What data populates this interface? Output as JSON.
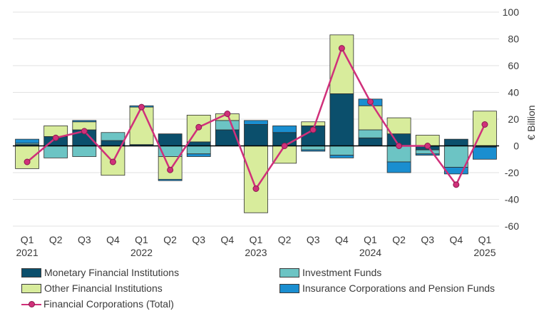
{
  "chart_data": {
    "type": "bar",
    "stacked": true,
    "categories": [
      "Q1",
      "Q2",
      "Q3",
      "Q4",
      "Q1",
      "Q2",
      "Q3",
      "Q4",
      "Q1",
      "Q2",
      "Q3",
      "Q4",
      "Q1",
      "Q2",
      "Q3",
      "Q4",
      "Q1"
    ],
    "years": [
      {
        "label": "2021",
        "index": 0
      },
      {
        "label": "2022",
        "index": 4
      },
      {
        "label": "2023",
        "index": 8
      },
      {
        "label": "2024",
        "index": 12
      },
      {
        "label": "2025",
        "index": 16
      }
    ],
    "ylabel": "€ Billion",
    "ylim": [
      -60,
      100
    ],
    "yticks": [
      100,
      80,
      60,
      40,
      20,
      0,
      -20,
      -40,
      -60
    ],
    "series": [
      {
        "name": "Monetary Financial Institutions",
        "color": "#0b4f6c",
        "values": [
          1,
          7,
          12,
          4,
          1,
          9,
          3,
          12,
          16,
          10,
          15,
          39,
          6,
          9,
          -3,
          5,
          -1
        ]
      },
      {
        "name": "Investment Funds",
        "color": "#6cc4c4",
        "values": [
          1,
          -9,
          -8,
          6,
          0,
          -8,
          -6,
          7,
          0,
          0,
          -3,
          -7,
          6,
          -12,
          -3,
          -16,
          0
        ]
      },
      {
        "name": "Other Financial Institutions",
        "color": "#d8ec9c",
        "values": [
          -17,
          8,
          6,
          -22,
          28,
          -17,
          20,
          5,
          -50,
          -13,
          3,
          44,
          18,
          12,
          8,
          0,
          26
        ]
      },
      {
        "name": "Insurance Corporations and Pension Funds",
        "color": "#1a8ed0",
        "values": [
          3,
          0,
          1,
          0,
          1,
          -1,
          -2,
          0,
          3,
          5,
          -1,
          -2,
          5,
          -8,
          -1,
          -5,
          -9
        ]
      }
    ],
    "line": {
      "name": "Financial Corporations (Total)",
      "color": "#d0307a",
      "values": [
        -12,
        6,
        11,
        -12,
        29,
        -18,
        14,
        24,
        -32,
        0,
        12,
        73,
        33,
        0,
        0,
        -29,
        16
      ]
    }
  },
  "legend": {
    "mfi": "Monetary Financial Institutions",
    "inv": "Investment Funds",
    "ofi": "Other Financial Institutions",
    "icpf": "Insurance Corporations and Pension Funds",
    "total": "Financial Corporations (Total)"
  }
}
